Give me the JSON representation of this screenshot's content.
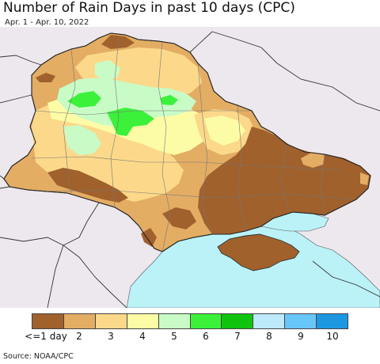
{
  "title": "Number of Rain Days in past 10 days (CPC)",
  "subtitle": "Apr. 1 - Apr. 10, 2022",
  "source": "Source: NOAA/CPC",
  "legend": {
    "bins": [
      {
        "label": "<=1 day",
        "color": "#a0612d"
      },
      {
        "label": "2",
        "color": "#e3ad64"
      },
      {
        "label": "3",
        "color": "#fcd98a"
      },
      {
        "label": "4",
        "color": "#fdfca6"
      },
      {
        "label": "5",
        "color": "#c9fbc7"
      },
      {
        "label": "6",
        "color": "#3bf13a"
      },
      {
        "label": "7",
        "color": "#10c30f"
      },
      {
        "label": "8",
        "color": "#bde9fb"
      },
      {
        "label": "9",
        "color": "#69c6f9"
      },
      {
        "label": "10",
        "color": "#1c98e1"
      }
    ]
  },
  "map": {
    "background_land": "#ede8ee",
    "sea_color": "#baf2f8",
    "border_color": "#333333",
    "region": "Ukraine"
  }
}
